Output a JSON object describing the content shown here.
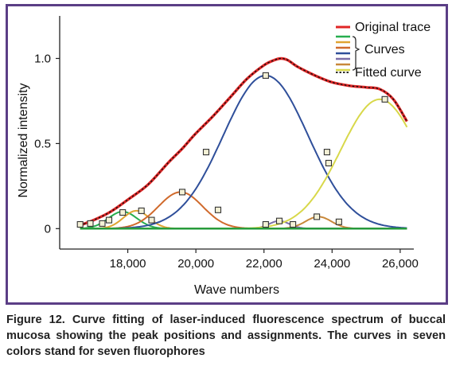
{
  "chart_data": {
    "type": "line",
    "title": "",
    "xlabel": "Wave numbers",
    "ylabel": "Normalized intensity",
    "xlim": [
      16000,
      26400
    ],
    "ylim": [
      -0.12,
      1.25
    ],
    "x_ticks": [
      {
        "value": 18000,
        "label": "18,000"
      },
      {
        "value": 20000,
        "label": "20,000"
      },
      {
        "value": 22000,
        "label": "22,000"
      },
      {
        "value": 24000,
        "label": "24,000"
      },
      {
        "value": 26000,
        "label": "26,000"
      }
    ],
    "y_ticks": [
      {
        "value": 0,
        "label": "0"
      },
      {
        "value": 0.5,
        "label": "0.5"
      },
      {
        "value": 1.0,
        "label": "1.0"
      }
    ],
    "grid": false,
    "legend_position": "top-right",
    "legend": {
      "original": "Original trace",
      "curves": "Curves",
      "fitted": "Fitted curve"
    },
    "components": [
      {
        "color": "#27ae4f",
        "peak_x": 17850,
        "amplitude": 0.1,
        "width": 420,
        "markers": [
          [
            16600,
            0.025
          ],
          [
            17450,
            0.05
          ],
          [
            17850,
            0.095
          ],
          [
            18700,
            0.05
          ]
        ]
      },
      {
        "color": "#e0a432",
        "peak_x": 18250,
        "amplitude": 0.105,
        "width": 380,
        "markers": [
          [
            16900,
            0.03
          ],
          [
            18400,
            0.105
          ]
        ]
      },
      {
        "color": "#d06a2c",
        "peak_x": 19550,
        "amplitude": 0.215,
        "width": 650,
        "markers": [
          [
            17250,
            0.03
          ],
          [
            19600,
            0.215
          ],
          [
            20650,
            0.11
          ]
        ]
      },
      {
        "color": "#2f4f9a",
        "peak_x": 22050,
        "amplitude": 0.9,
        "width": 1250,
        "markers": [
          [
            20300,
            0.45
          ],
          [
            22050,
            0.9
          ],
          [
            23850,
            0.45
          ]
        ]
      },
      {
        "color": "#7c6fa8",
        "peak_x": 22450,
        "amplitude": 0.045,
        "width": 300,
        "markers": [
          [
            22050,
            0.025
          ],
          [
            22450,
            0.045
          ],
          [
            22850,
            0.025
          ]
        ]
      },
      {
        "color": "#c8883a",
        "peak_x": 23600,
        "amplitude": 0.07,
        "width": 380,
        "markers": [
          [
            23550,
            0.07
          ],
          [
            24200,
            0.04
          ]
        ]
      },
      {
        "color": "#d8d84a",
        "peak_x": 25400,
        "amplitude": 0.76,
        "width": 1150,
        "markers": [
          [
            23900,
            0.385
          ],
          [
            25550,
            0.76
          ]
        ]
      }
    ],
    "baseline_color": "#1f9a3a",
    "series": [
      {
        "name": "Original trace",
        "color": "#e02626",
        "x": [
          16600,
          17000,
          17500,
          18000,
          18600,
          19200,
          19600,
          20000,
          20500,
          21000,
          21500,
          22000,
          22300,
          22500,
          22700,
          23000,
          23500,
          24000,
          24500,
          25000,
          25400,
          25800,
          26200
        ],
        "y": [
          0.02,
          0.05,
          0.1,
          0.17,
          0.26,
          0.39,
          0.47,
          0.56,
          0.66,
          0.77,
          0.88,
          0.96,
          0.99,
          1.0,
          0.99,
          0.95,
          0.9,
          0.86,
          0.84,
          0.83,
          0.82,
          0.76,
          0.63
        ]
      },
      {
        "name": "Fitted curve",
        "color": "#111111",
        "x": [
          16600,
          17000,
          17500,
          18000,
          18600,
          19200,
          19600,
          20000,
          20500,
          21000,
          21500,
          22000,
          22300,
          22500,
          22700,
          23000,
          23500,
          24000,
          24500,
          25000,
          25400,
          25800,
          26200
        ],
        "y": [
          0.02,
          0.05,
          0.1,
          0.17,
          0.26,
          0.39,
          0.47,
          0.56,
          0.66,
          0.77,
          0.88,
          0.96,
          0.99,
          1.0,
          0.99,
          0.95,
          0.9,
          0.86,
          0.84,
          0.83,
          0.82,
          0.76,
          0.63
        ]
      }
    ]
  },
  "caption": "Figure 12. Curve fitting of laser-induced fluorescence spectrum of buccal mucosa showing the peak positions and assignments. The curves in seven colors stand for seven fluorophores"
}
